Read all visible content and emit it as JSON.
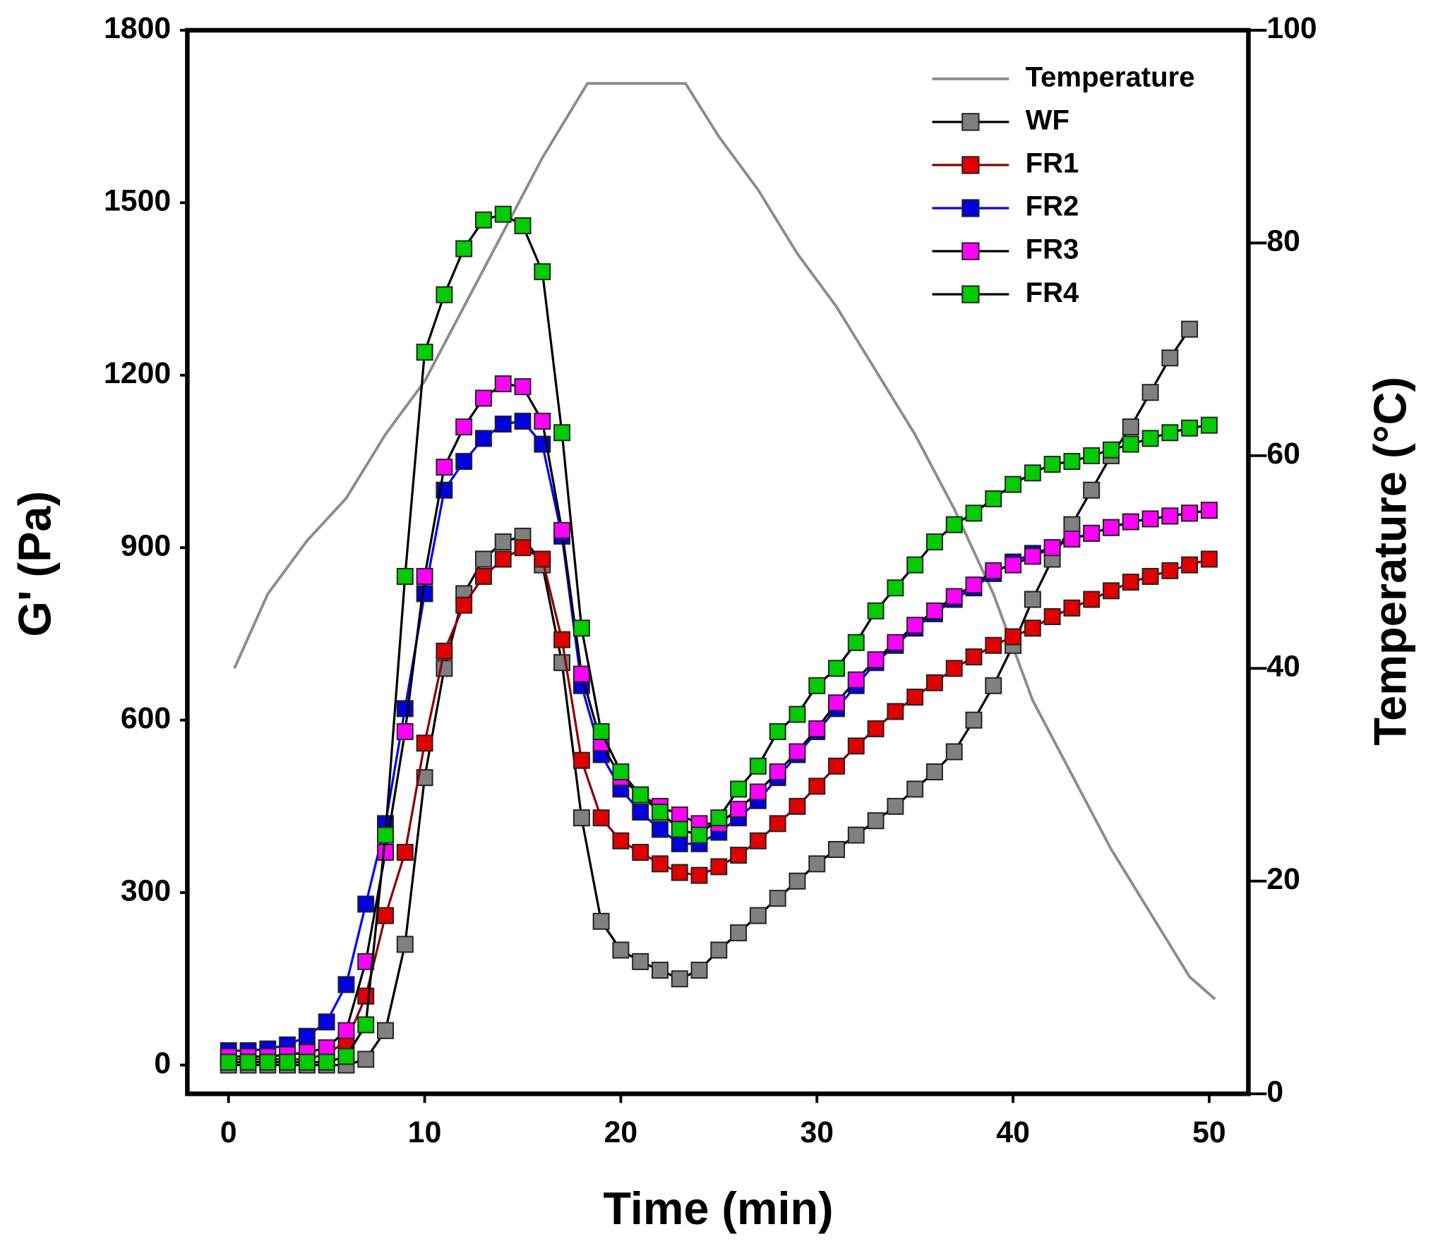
{
  "chart_data": {
    "type": "line",
    "xlabel": "Time (min)",
    "ylabel": "G' (Pa)",
    "y2label": "Temperature (°C)",
    "xlim": [
      -2.1,
      52
    ],
    "ylim": [
      -50,
      1800
    ],
    "y2lim": [
      0,
      100
    ],
    "xticks": [
      0,
      10,
      20,
      30,
      40,
      50
    ],
    "yticks": [
      0,
      300,
      600,
      900,
      1200,
      1500,
      1800
    ],
    "y2ticks": [
      0,
      20,
      40,
      60,
      80,
      100
    ],
    "legend": "upper right",
    "temperature": {
      "name": "Temperature",
      "color": "#8c8c8c",
      "axis": "y2",
      "x": [
        0.3,
        2,
        4,
        6,
        8,
        10,
        12,
        14,
        16,
        18.3,
        20,
        23.3,
        25,
        27,
        29,
        31,
        33,
        35,
        37,
        39,
        41,
        43,
        45,
        47,
        49,
        50.3
      ],
      "values": [
        40,
        47,
        52,
        56,
        62,
        67,
        74,
        81,
        88,
        95,
        95,
        95,
        90,
        85,
        79,
        74,
        68,
        62,
        55,
        47,
        37,
        30,
        23,
        17,
        11,
        8.9
      ]
    },
    "x": [
      0,
      1,
      2,
      3,
      4,
      5,
      6,
      7,
      8,
      9,
      10,
      11,
      12,
      13,
      14,
      15,
      16,
      17,
      18,
      19,
      20,
      21,
      22,
      23,
      24,
      25,
      26,
      27,
      28,
      29,
      30,
      31,
      32,
      33,
      34,
      35,
      36,
      37,
      38,
      39,
      40,
      41,
      42,
      43,
      44,
      45,
      46,
      47,
      48,
      49,
      50
    ],
    "series": [
      {
        "name": "WF",
        "color": "#808080",
        "line_color": "#000000",
        "values": [
          0,
          0,
          0,
          0,
          0,
          0,
          0,
          10,
          60,
          210,
          500,
          690,
          820,
          880,
          910,
          920,
          870,
          700,
          430,
          250,
          200,
          180,
          165,
          150,
          165,
          200,
          230,
          260,
          290,
          320,
          350,
          375,
          400,
          425,
          450,
          480,
          510,
          545,
          600,
          660,
          730,
          810,
          880,
          940,
          1000,
          1060,
          1110,
          1170,
          1230,
          1280,
          null
        ]
      },
      {
        "name": "FR1",
        "color": "#e00000",
        "line_color": "#8b0000",
        "values": [
          10,
          10,
          10,
          10,
          10,
          20,
          40,
          120,
          260,
          370,
          560,
          720,
          800,
          850,
          880,
          900,
          880,
          740,
          530,
          430,
          390,
          370,
          350,
          335,
          330,
          345,
          365,
          390,
          420,
          450,
          485,
          520,
          555,
          585,
          615,
          640,
          665,
          690,
          710,
          730,
          745,
          760,
          780,
          795,
          810,
          825,
          840,
          850,
          860,
          870,
          880
        ]
      },
      {
        "name": "FR2",
        "color": "#0000e0",
        "line_color": "#0000ff",
        "values": [
          25,
          25,
          28,
          35,
          50,
          75,
          140,
          280,
          420,
          620,
          820,
          1000,
          1050,
          1090,
          1115,
          1120,
          1080,
          920,
          660,
          540,
          480,
          440,
          410,
          385,
          385,
          405,
          430,
          460,
          500,
          540,
          580,
          620,
          660,
          700,
          730,
          760,
          785,
          810,
          830,
          855,
          875,
          890,
          900,
          915,
          925,
          935,
          945,
          950,
          955,
          960,
          965
        ]
      },
      {
        "name": "FR3",
        "color": "#ff00ff",
        "line_color": "#000000",
        "values": [
          15,
          15,
          15,
          18,
          22,
          30,
          60,
          180,
          370,
          580,
          850,
          1040,
          1110,
          1160,
          1185,
          1180,
          1120,
          930,
          680,
          560,
          500,
          470,
          450,
          435,
          420,
          420,
          445,
          475,
          510,
          545,
          585,
          630,
          670,
          705,
          735,
          765,
          790,
          815,
          835,
          860,
          870,
          885,
          900,
          915,
          925,
          935,
          945,
          950,
          955,
          960,
          965
        ]
      },
      {
        "name": "FR4",
        "color": "#00cc00",
        "line_color": "#000000",
        "values": [
          5,
          5,
          5,
          5,
          5,
          5,
          15,
          70,
          400,
          850,
          1240,
          1340,
          1420,
          1470,
          1480,
          1460,
          1380,
          1100,
          760,
          580,
          510,
          470,
          440,
          410,
          400,
          430,
          480,
          520,
          580,
          610,
          660,
          690,
          735,
          790,
          830,
          870,
          910,
          940,
          960,
          985,
          1010,
          1030,
          1045,
          1050,
          1060,
          1070,
          1080,
          1090,
          1100,
          1108,
          1113
        ]
      }
    ]
  }
}
